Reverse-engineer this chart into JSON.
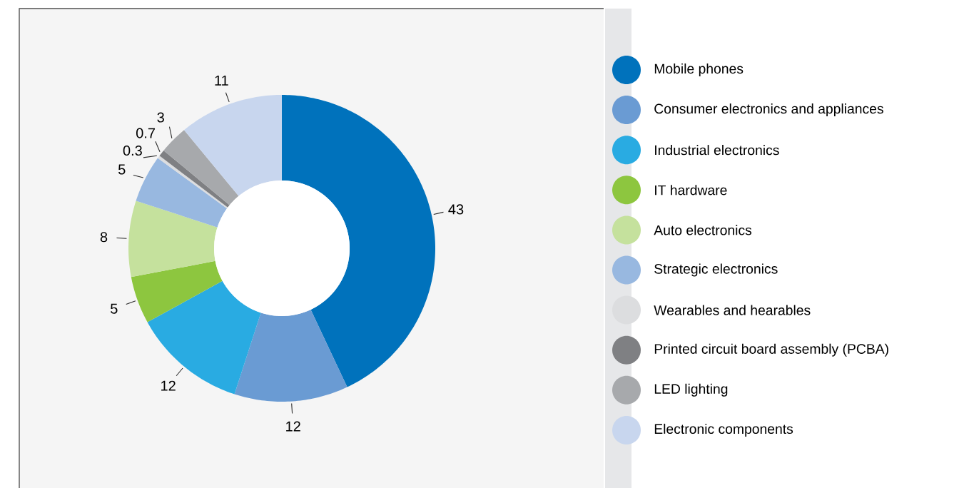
{
  "chart_data": {
    "type": "donut",
    "categories": [
      "Mobile phones",
      "Consumer electronics and appliances",
      "Industrial electronics",
      "IT hardware",
      "Auto electronics",
      "Strategic electronics",
      "Wearables and hearables",
      "Printed circuit board assembly (PCBA)",
      "LED lighting",
      "Electronic components"
    ],
    "values": [
      43,
      12,
      12,
      5,
      8,
      5,
      0.3,
      0.7,
      3,
      11
    ],
    "colors": [
      "#0072bc",
      "#6a9bd3",
      "#29abe2",
      "#8dc63f",
      "#c5e19d",
      "#98b8e0",
      "#dcdddf",
      "#7f8083",
      "#a7a9ac",
      "#c8d6ee"
    ],
    "data_labels": true,
    "legend": "right"
  }
}
